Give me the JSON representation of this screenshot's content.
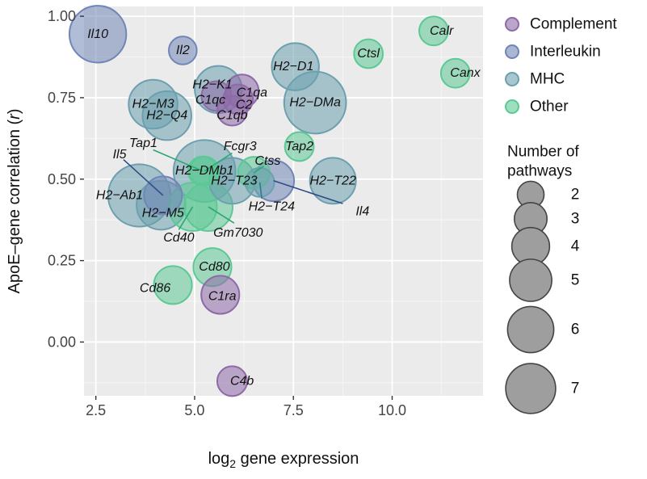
{
  "chart_data": {
    "type": "scatter",
    "title": "",
    "xlabel": "log2 gene expression",
    "xlabel_parts": {
      "main": "log",
      "sub": "2",
      "rest": " gene expression"
    },
    "ylabel": "ApoE–gene correlation (r)",
    "ylabel_parts": {
      "main": "ApoE–gene correlation (",
      "italic": "r",
      "end": ")"
    },
    "xlim": [
      2.2,
      12.3
    ],
    "ylim": [
      -0.165,
      1.03
    ],
    "xticks": [
      2.5,
      5.0,
      7.5,
      10.0
    ],
    "xtick_labels": [
      "2.5",
      "5.0",
      "7.5",
      "10.0"
    ],
    "yticks": [
      0.0,
      0.25,
      0.5,
      0.75,
      1.0
    ],
    "ytick_labels": [
      "0.00",
      "0.25",
      "0.50",
      "0.75",
      "1.00"
    ],
    "grid": true,
    "categories": [
      {
        "name": "Complement",
        "color": "#8e6aa8"
      },
      {
        "name": "Interleukin",
        "color": "#7186b6"
      },
      {
        "name": "MHC",
        "color": "#6ca0ae"
      },
      {
        "name": "Other",
        "color": "#5cc995"
      }
    ],
    "size_legend_title": "Number of\npathways",
    "size_legend_title_lines": [
      "Number of",
      "pathways"
    ],
    "size_legend": [
      2,
      3,
      4,
      5,
      6,
      7
    ],
    "points": [
      {
        "gene": "Il10",
        "x": 2.55,
        "y": 0.945,
        "group": "Interleukin",
        "pathways": 5.8,
        "label_x": 2.55,
        "label_y": 0.945
      },
      {
        "gene": "Il2",
        "x": 4.7,
        "y": 0.895,
        "group": "Interleukin",
        "pathways": 1.4,
        "label_x": 4.7,
        "label_y": 0.895
      },
      {
        "gene": "Calr",
        "x": 11.05,
        "y": 0.955,
        "group": "Other",
        "pathways": 1.5,
        "label_x": 11.25,
        "label_y": 0.955
      },
      {
        "gene": "Ctsl",
        "x": 9.4,
        "y": 0.885,
        "group": "Other",
        "pathways": 1.5,
        "label_x": 9.4,
        "label_y": 0.885
      },
      {
        "gene": "Canx",
        "x": 11.6,
        "y": 0.825,
        "group": "Other",
        "pathways": 1.5,
        "label_x": 11.85,
        "label_y": 0.825
      },
      {
        "gene": "H2−D1",
        "x": 7.55,
        "y": 0.845,
        "group": "MHC",
        "pathways": 4.0,
        "label_x": 7.5,
        "label_y": 0.845
      },
      {
        "gene": "H2−DMa",
        "x": 8.05,
        "y": 0.735,
        "group": "MHC",
        "pathways": 6.9,
        "label_x": 8.05,
        "label_y": 0.735
      },
      {
        "gene": "H2−K1",
        "x": 5.6,
        "y": 0.775,
        "group": "MHC",
        "pathways": 4.0,
        "label_x": 5.45,
        "label_y": 0.79
      },
      {
        "gene": "C1qa",
        "x": 6.2,
        "y": 0.77,
        "group": "Complement",
        "pathways": 2.0,
        "label_x": 6.45,
        "label_y": 0.765
      },
      {
        "gene": "C1qc",
        "x": 5.55,
        "y": 0.755,
        "group": "Complement",
        "pathways": 1.6,
        "label_x": 5.4,
        "label_y": 0.743
      },
      {
        "gene": "C2",
        "x": 6.1,
        "y": 0.745,
        "group": "Complement",
        "pathways": 1.6,
        "label_x": 6.25,
        "label_y": 0.727
      },
      {
        "gene": "C1qb",
        "x": 5.95,
        "y": 0.71,
        "group": "Complement",
        "pathways": 1.6,
        "label_x": 5.95,
        "label_y": 0.695
      },
      {
        "gene": "H2−M3",
        "x": 3.95,
        "y": 0.73,
        "group": "MHC",
        "pathways": 4.3,
        "label_x": 3.95,
        "label_y": 0.73
      },
      {
        "gene": "H2−Q4",
        "x": 4.3,
        "y": 0.695,
        "group": "MHC",
        "pathways": 4.3,
        "label_x": 4.3,
        "label_y": 0.695
      },
      {
        "gene": "Tap2",
        "x": 7.65,
        "y": 0.6,
        "group": "Other",
        "pathways": 1.5,
        "label_x": 7.65,
        "label_y": 0.6
      },
      {
        "gene": "H2−DMb1",
        "x": 5.25,
        "y": 0.525,
        "group": "MHC",
        "pathways": 6.9,
        "label_x": 5.25,
        "label_y": 0.525
      },
      {
        "gene": "Fcgr3",
        "x": 5.25,
        "y": 0.525,
        "group": "Other",
        "pathways": 1.5,
        "label_x": 6.15,
        "label_y": 0.6
      },
      {
        "gene": "Tap1",
        "x": 5.2,
        "y": 0.525,
        "group": "Other",
        "pathways": 1.5,
        "label_x": 3.7,
        "label_y": 0.61
      },
      {
        "gene": "Ctss",
        "x": 6.5,
        "y": 0.52,
        "group": "Other",
        "pathways": 1.8,
        "label_x": 6.85,
        "label_y": 0.555
      },
      {
        "gene": "H2−T23",
        "x": 5.95,
        "y": 0.495,
        "group": "MHC",
        "pathways": 3.8,
        "label_x": 6.0,
        "label_y": 0.495
      },
      {
        "gene": "H2−T22",
        "x": 8.5,
        "y": 0.495,
        "group": "MHC",
        "pathways": 3.8,
        "label_x": 8.5,
        "label_y": 0.495
      },
      {
        "gene": "H2−T24",
        "x": 6.65,
        "y": 0.49,
        "group": "MHC",
        "pathways": 1.5,
        "label_x": 6.95,
        "label_y": 0.415
      },
      {
        "gene": "Il4",
        "x": 7.0,
        "y": 0.495,
        "group": "Interleukin",
        "pathways": 3.0,
        "label_x": 9.25,
        "label_y": 0.4
      },
      {
        "gene": "Il5",
        "x": 4.2,
        "y": 0.45,
        "group": "Interleukin",
        "pathways": 2.6,
        "label_x": 3.1,
        "label_y": 0.575
      },
      {
        "gene": "H2−Ab1",
        "x": 3.6,
        "y": 0.45,
        "group": "MHC",
        "pathways": 7.0,
        "label_x": 3.1,
        "label_y": 0.45
      },
      {
        "gene": "H2−M5",
        "x": 4.15,
        "y": 0.42,
        "group": "MHC",
        "pathways": 4.3,
        "label_x": 4.2,
        "label_y": 0.395
      },
      {
        "gene": "Cd40",
        "x": 4.95,
        "y": 0.415,
        "group": "Other",
        "pathways": 4.2,
        "label_x": 4.6,
        "label_y": 0.32
      },
      {
        "gene": "Gm7030",
        "x": 5.35,
        "y": 0.415,
        "group": "Other",
        "pathways": 4.2,
        "label_x": 6.1,
        "label_y": 0.335
      },
      {
        "gene": "Cd80",
        "x": 5.45,
        "y": 0.23,
        "group": "Other",
        "pathways": 2.6,
        "label_x": 5.5,
        "label_y": 0.23
      },
      {
        "gene": "Cd86",
        "x": 4.45,
        "y": 0.175,
        "group": "Other",
        "pathways": 2.6,
        "label_x": 4.0,
        "label_y": 0.165
      },
      {
        "gene": "C1ra",
        "x": 5.65,
        "y": 0.145,
        "group": "Complement",
        "pathways": 2.6,
        "label_x": 5.7,
        "label_y": 0.14
      },
      {
        "gene": "C4b",
        "x": 5.95,
        "y": -0.12,
        "group": "Complement",
        "pathways": 1.6,
        "label_x": 6.2,
        "label_y": -0.12
      }
    ],
    "leaders": [
      {
        "gene": "Il5",
        "from": [
          3.2,
          0.56
        ],
        "to": [
          4.2,
          0.45
        ]
      },
      {
        "gene": "Tap1",
        "from": [
          3.95,
          0.59
        ],
        "to": [
          5.2,
          0.525
        ]
      },
      {
        "gene": "Fcgr3",
        "from": [
          5.95,
          0.58
        ],
        "to": [
          5.25,
          0.525
        ]
      },
      {
        "gene": "Ctss",
        "from": [
          6.75,
          0.54
        ],
        "to": [
          6.5,
          0.52
        ]
      },
      {
        "gene": "H2−T24",
        "from": [
          6.7,
          0.44
        ],
        "to": [
          6.65,
          0.49
        ]
      },
      {
        "gene": "Il4",
        "from": [
          8.75,
          0.425
        ],
        "to": [
          7.0,
          0.495
        ]
      },
      {
        "gene": "Cd40",
        "from": [
          4.6,
          0.345
        ],
        "to": [
          4.95,
          0.415
        ]
      },
      {
        "gene": "Gm7030",
        "from": [
          6.0,
          0.365
        ],
        "to": [
          5.35,
          0.415
        ]
      }
    ]
  }
}
